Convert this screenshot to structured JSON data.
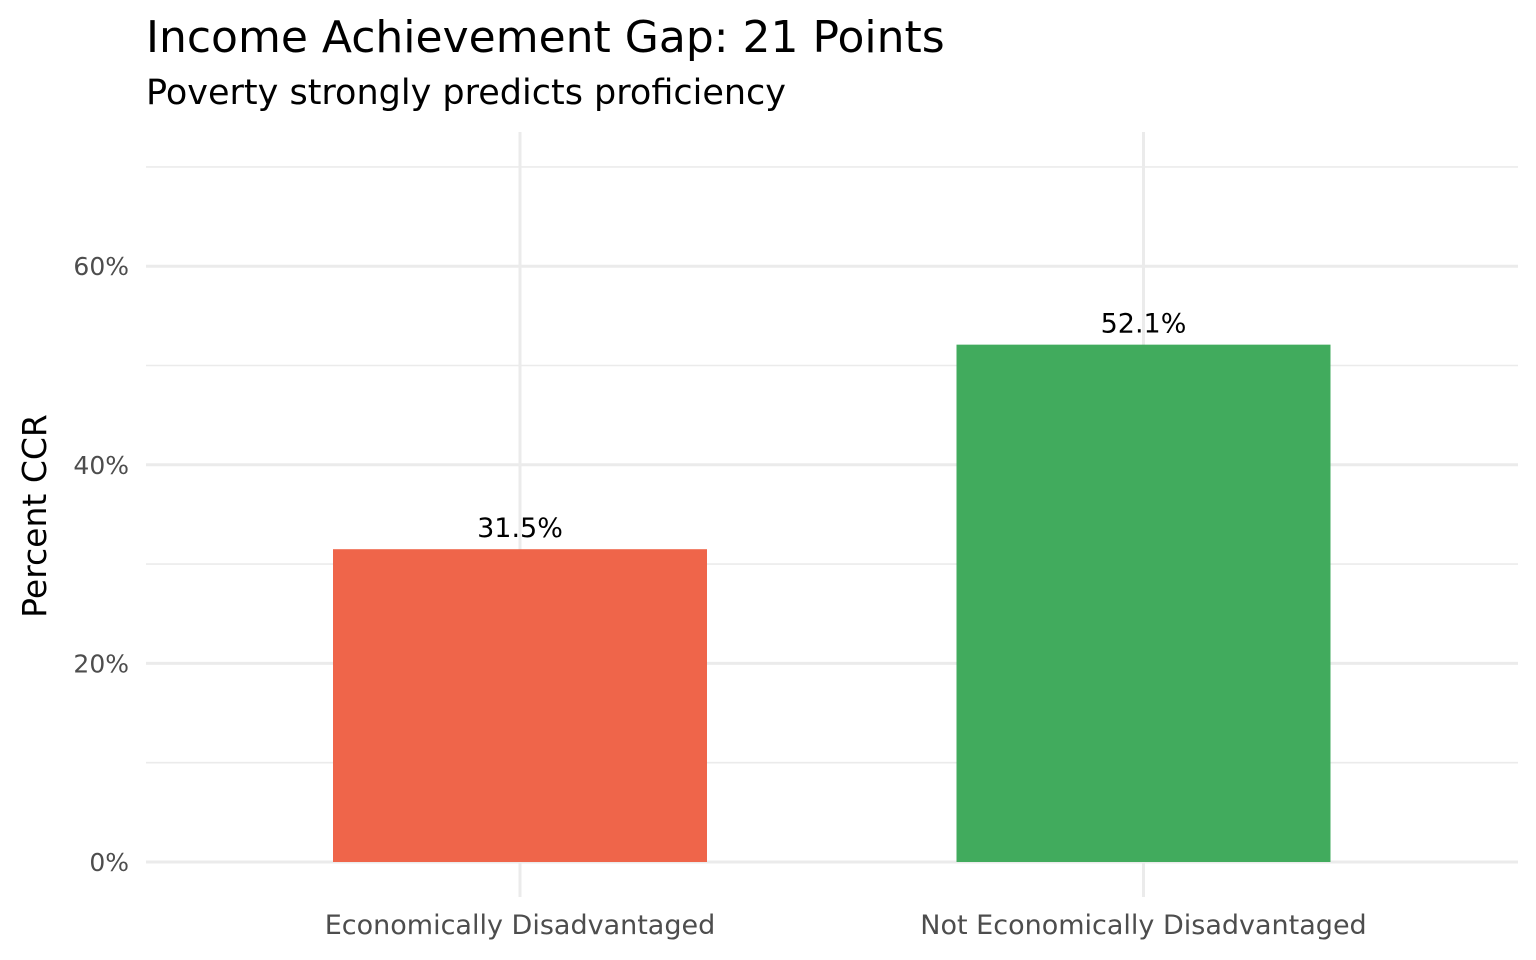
{
  "chart_data": {
    "type": "bar",
    "title": "Income Achievement Gap: 21 Points",
    "subtitle": "Poverty strongly predicts proficiency",
    "xlabel": "",
    "ylabel": "Percent CCR",
    "categories": [
      "Economically Disadvantaged",
      "Not Economically Disadvantaged"
    ],
    "values": [
      31.5,
      52.1
    ],
    "data_labels": [
      "31.5%",
      "52.1%"
    ],
    "colors": [
      "#ef654a",
      "#41ab5d"
    ],
    "ylim": [
      0,
      70
    ],
    "yticks": [
      0,
      20,
      40,
      60
    ],
    "ytick_labels": [
      "0%",
      "20%",
      "40%",
      "60%"
    ],
    "grid": true,
    "legend": "none"
  }
}
